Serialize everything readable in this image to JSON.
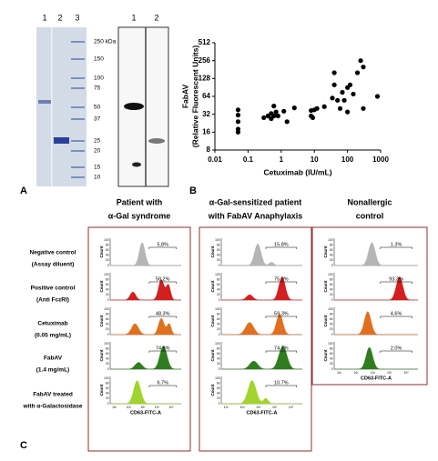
{
  "panel_a": {
    "letter": "A",
    "gel_lanes": [
      "1",
      "2",
      "3"
    ],
    "markers": [
      "250 kDa",
      "150",
      "100",
      "75",
      "50",
      "37",
      "25",
      "20",
      "15",
      "10"
    ],
    "blot_lanes": [
      "1",
      "2"
    ]
  },
  "chart_data": {
    "type": "scatter",
    "letter": "B",
    "y_label": [
      "FabAV",
      "(Relative Fluorescent Units)"
    ],
    "x_label": "Cetuximab  (IU/mL)",
    "x": [
      0.05,
      0.05,
      0.05,
      0.05,
      0.05,
      0.3,
      0.4,
      0.5,
      0.5,
      0.6,
      0.7,
      0.6,
      0.8,
      1.2,
      1.5,
      2.5,
      8,
      8,
      9,
      10,
      12,
      20,
      35,
      40,
      40,
      50,
      60,
      70,
      80,
      100,
      100,
      120,
      150,
      200,
      250,
      300,
      300,
      800
    ],
    "y": [
      38,
      31,
      24,
      18,
      16,
      28,
      30,
      27,
      33,
      30,
      35,
      44,
      30,
      36,
      24,
      41,
      37,
      30,
      28,
      38,
      40,
      43,
      60,
      160,
      100,
      55,
      40,
      75,
      55,
      35,
      90,
      100,
      70,
      160,
      256,
      200,
      40,
      64
    ],
    "color": "#000000",
    "xscale": "log",
    "yscale": "log",
    "xlim": [
      0.01,
      1000
    ],
    "xticks": [
      0.01,
      0.1,
      1,
      10,
      100,
      1000
    ],
    "ylim": [
      8,
      512
    ],
    "yticks": [
      8,
      16,
      32,
      64,
      128,
      256,
      512
    ]
  },
  "panel_c": {
    "letter": "C",
    "x_axis_label": "CD63-FITC-A",
    "y_axis_label": "Count",
    "yticks": [
      0,
      20,
      40,
      60,
      80,
      100
    ],
    "xticks": [
      "10¹",
      "10²",
      "10³",
      "10⁴",
      "10⁵"
    ],
    "rows": [
      {
        "label": [
          "Negative control",
          "(Assay diluent)"
        ],
        "color": "#b5b5b5"
      },
      {
        "label": [
          "Positive control",
          "(Anti FcεRI)"
        ],
        "color": "#d21f1f"
      },
      {
        "label": [
          "Cetuximab",
          "(0.05 mg/mL)"
        ],
        "color": "#e0701e"
      },
      {
        "label": [
          "FabAV",
          "(1.4 mg/mL)"
        ],
        "color": "#2f7d1f"
      },
      {
        "label": [
          "FabAV treated",
          "with α-Galactosidase"
        ],
        "color": "#a3d32e"
      }
    ],
    "columns": [
      {
        "title": [
          "Patient with",
          "α-Gal syndrome"
        ],
        "percents": [
          "5.8%",
          "58.2%",
          "48.3%",
          "74.6%",
          "6.7%"
        ]
      },
      {
        "title": [
          "α-Gal-sensitized patient",
          "with FabAV Anaphylaxis"
        ],
        "percents": [
          "15.8%",
          "75.9%",
          "59.3%",
          "74.7%",
          "10.7%"
        ]
      },
      {
        "title": [
          "Nonallergic",
          "control"
        ],
        "percents": [
          "1.3%",
          "93.3%",
          "4.6%",
          "2.0%"
        ]
      }
    ]
  }
}
